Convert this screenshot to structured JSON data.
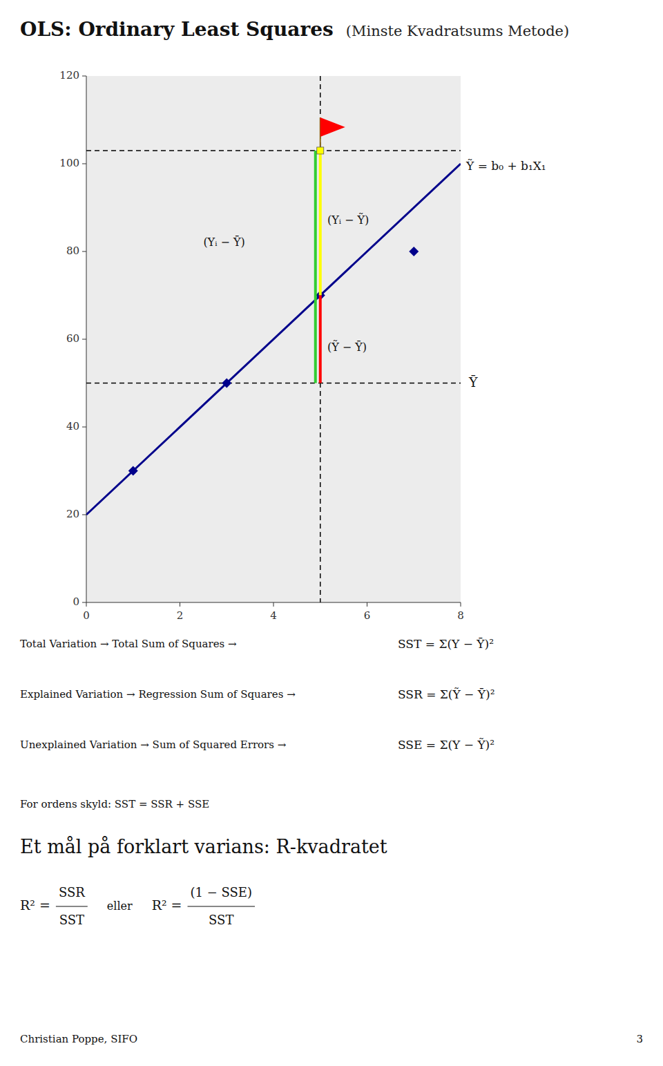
{
  "chart_data": {
    "type": "line",
    "title": "OLS: Ordinary Least Squares",
    "subtitle": "(Minste Kvadratsums Metode)",
    "xlim": [
      0,
      8
    ],
    "ylim": [
      0,
      120
    ],
    "xticks": [
      0,
      2,
      4,
      6,
      8
    ],
    "yticks": [
      0,
      20,
      40,
      60,
      80,
      100,
      120
    ],
    "series": [
      {
        "type": "line",
        "color": "darkblue",
        "x": [
          0,
          8
        ],
        "values": [
          20,
          100
        ],
        "label": "Ỹ = b₀ + b₁X₁"
      },
      {
        "type": "scatter",
        "marker": "diamond",
        "color": "darkblue",
        "x": [
          1,
          3,
          5,
          7
        ],
        "values": [
          30,
          50,
          70,
          80
        ]
      }
    ],
    "reference_lines": [
      {
        "axis": "y",
        "value": 50,
        "line_style": "dashed",
        "label": "Ȳ"
      },
      {
        "axis": "y",
        "value": 103,
        "line_style": "dashed"
      },
      {
        "axis": "x",
        "value": 5,
        "line_style": "dashed"
      }
    ],
    "segments": [
      {
        "x": 5,
        "from": 50,
        "to": 103,
        "color": "limegreen"
      },
      {
        "x": 5,
        "from": 70,
        "to": 103,
        "color": "yellow"
      },
      {
        "x": 5,
        "from": 50,
        "to": 70,
        "color": "red"
      }
    ],
    "highlight": {
      "x": 5,
      "value": 103,
      "marker": "square",
      "color": "yellow",
      "flag_color": "red"
    },
    "annotations": [
      {
        "x": 5.15,
        "y": 87,
        "text": "(Yᵢ − Ỹ)"
      },
      {
        "x": 2.5,
        "y": 82,
        "text": "(Yᵢ − Ȳ)"
      },
      {
        "x": 5.15,
        "y": 58,
        "text": "(Ỹ − Ȳ)"
      }
    ],
    "notes": [
      {
        "text": "Total Variation → Total Sum of Squares →",
        "formula": "SST = Σ(Y − Ȳ)²"
      },
      {
        "text": "Explained Variation → Regression Sum of Squares →",
        "formula": "SSR = Σ(Ỹ − Ȳ)²"
      },
      {
        "text": "Unexplained Variation → Sum of Squared Errors →",
        "formula": "SSE = Σ(Y − Ỹ)²"
      }
    ],
    "summary": "For ordens skyld: SST = SSR + SSE",
    "heading": "Et mål på forklart varians: R-kvadratet",
    "formulas": [
      {
        "lhs": "R² =",
        "numerator": "SSR",
        "denominator": "SST"
      },
      {
        "lhs": "R² =",
        "numerator": "(1 − SSE)",
        "denominator": "SST"
      }
    ],
    "formula_join": "eller",
    "footer_left": "Christian Poppe, SIFO",
    "footer_right": "3"
  }
}
